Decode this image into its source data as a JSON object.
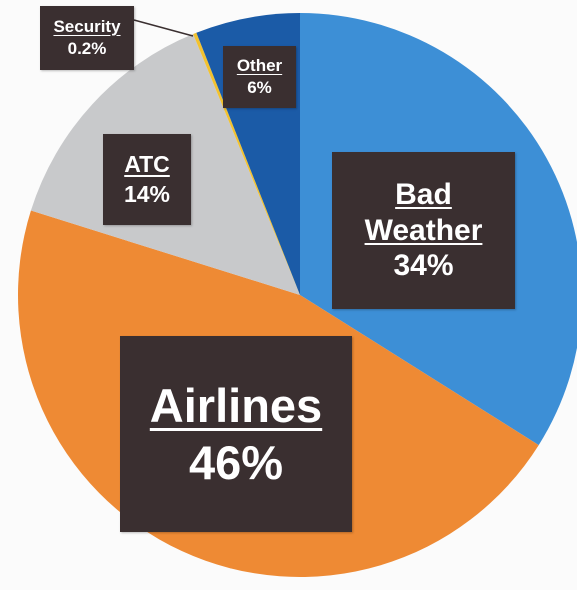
{
  "chart_data": {
    "type": "pie",
    "slices": [
      {
        "key": "weather",
        "name": "Bad Weather",
        "name_lines": [
          "Bad",
          "Weather"
        ],
        "value": 34,
        "value_label": "34%",
        "color": "#3d8fd6"
      },
      {
        "key": "airlines",
        "name": "Airlines",
        "name_lines": [
          "Airlines"
        ],
        "value": 46,
        "value_label": "46%",
        "color": "#ee8a34"
      },
      {
        "key": "atc",
        "name": "ATC",
        "name_lines": [
          "ATC"
        ],
        "value": 14,
        "value_label": "14%",
        "color": "#c8c9cb"
      },
      {
        "key": "security",
        "name": "Security",
        "name_lines": [
          "Security"
        ],
        "value": 0.2,
        "value_label": "0.2%",
        "color": "#f2c230"
      },
      {
        "key": "other",
        "name": "Other",
        "name_lines": [
          "Other"
        ],
        "value": 6,
        "value_label": "6%",
        "color": "#1b5ba7"
      }
    ],
    "start_angle_deg": 0,
    "direction": "clockwise"
  }
}
